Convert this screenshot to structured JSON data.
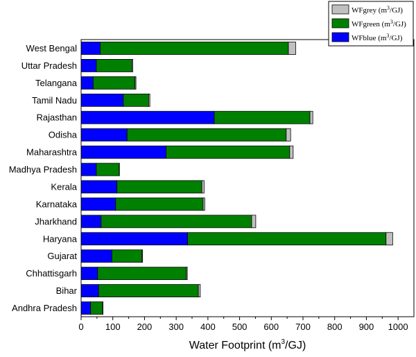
{
  "chart_data": {
    "type": "bar",
    "orientation": "horizontal",
    "stacked": true,
    "categories": [
      "West Bengal",
      "Uttar Pradesh",
      "Telangana",
      "Tamil Nadu",
      "Rajasthan",
      "Odisha",
      "Maharashtra",
      "Madhya Pradesh",
      "Kerala",
      "Karnataka",
      "Jharkhand",
      "Haryana",
      "Gujarat",
      "Chhattisgarh",
      "Bihar",
      "Andhra Pradesh"
    ],
    "series": [
      {
        "name": "WFblue",
        "unit": "m3/GJ",
        "color": "#0000ff",
        "values": [
          60,
          48,
          38,
          133,
          420,
          145,
          268,
          48,
          113,
          109,
          63,
          336,
          97,
          52,
          55,
          30
        ]
      },
      {
        "name": "WFgreen",
        "unit": "m3/GJ",
        "color": "#008000",
        "values": [
          594,
          112,
          132,
          80,
          302,
          502,
          390,
          72,
          268,
          276,
          475,
          626,
          95,
          280,
          315,
          38
        ]
      },
      {
        "name": "WFgrey",
        "unit": "m3/GJ",
        "color": "#c0c0c0",
        "values": [
          23,
          3,
          3,
          4,
          9,
          14,
          11,
          1,
          7,
          5,
          13,
          21,
          2,
          3,
          6,
          1
        ]
      }
    ],
    "xlabel_main": "Water Footprint (m",
    "xlabel_sup": "3",
    "xlabel_end": "/GJ)",
    "ylabel": "",
    "xlim": [
      0,
      1050
    ],
    "xticks": [
      0,
      100,
      200,
      300,
      400,
      500,
      600,
      700,
      800,
      900,
      1000
    ],
    "grid": false,
    "legend": {
      "placement": "top-right",
      "order": [
        "WFgrey",
        "WFgreen",
        "WFblue"
      ],
      "label_suffix_a": " (m",
      "label_sup": "3",
      "label_suffix_b": "/GJ)"
    }
  }
}
